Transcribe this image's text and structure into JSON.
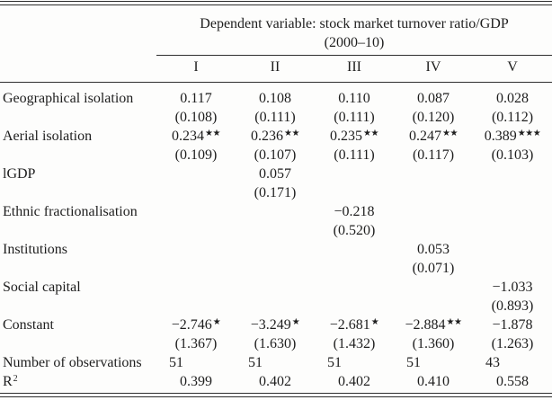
{
  "page": {
    "background": "#fdfdfc",
    "text_color": "#1e1e1e",
    "rule_color": "#2e2e2e"
  },
  "table": {
    "dependent_variable_header": {
      "line1": "Dependent variable: stock market turnover ratio/GDP",
      "line2": "(2000–10)"
    },
    "column_headers": [
      "I",
      "II",
      "III",
      "IV",
      "V"
    ],
    "variable_rows": [
      {
        "label": "Geographical isolation",
        "cells": [
          {
            "coef": "0.117",
            "stars": "",
            "se": "(0.108)"
          },
          {
            "coef": "0.108",
            "stars": "",
            "se": "(0.111)"
          },
          {
            "coef": "0.110",
            "stars": "",
            "se": "(0.111)"
          },
          {
            "coef": "0.087",
            "stars": "",
            "se": "(0.120)"
          },
          {
            "coef": "0.028",
            "stars": "",
            "se": "(0.112)"
          }
        ]
      },
      {
        "label": "Aerial isolation",
        "cells": [
          {
            "coef": "0.234",
            "stars": "★★",
            "se": "(0.109)"
          },
          {
            "coef": "0.236",
            "stars": "★★",
            "se": "(0.107)"
          },
          {
            "coef": "0.235",
            "stars": "★★",
            "se": "(0.111)"
          },
          {
            "coef": "0.247",
            "stars": "★★",
            "se": "(0.117)"
          },
          {
            "coef": "0.389",
            "stars": "★★★",
            "se": "(0.103)"
          }
        ]
      },
      {
        "label": "lGDP",
        "cells": [
          null,
          {
            "coef": "0.057",
            "stars": "",
            "se": "(0.171)"
          },
          null,
          null,
          null
        ]
      },
      {
        "label": "Ethnic fractionalisation",
        "cells": [
          null,
          null,
          {
            "coef": "−0.218",
            "stars": "",
            "se": "(0.520)"
          },
          null,
          null
        ]
      },
      {
        "label": "Institutions",
        "cells": [
          null,
          null,
          null,
          {
            "coef": "0.053",
            "stars": "",
            "se": "(0.071)"
          },
          null
        ]
      },
      {
        "label": "Social capital",
        "cells": [
          null,
          null,
          null,
          null,
          {
            "coef": "−1.033",
            "stars": "",
            "se": "(0.893)"
          }
        ]
      },
      {
        "label": "Constant",
        "cells": [
          {
            "coef": "−2.746",
            "stars": "★",
            "se": "(1.367)"
          },
          {
            "coef": "−3.249",
            "stars": "★",
            "se": "(1.630)"
          },
          {
            "coef": "−2.681",
            "stars": "★",
            "se": "(1.432)"
          },
          {
            "coef": "−2.884",
            "stars": "★★",
            "se": "(1.360)"
          },
          {
            "coef": "−1.878",
            "stars": "",
            "se": "(1.263)"
          }
        ]
      }
    ],
    "stat_rows": [
      {
        "label": "Number of observations",
        "label_sup": "",
        "values": [
          "51",
          "51",
          "51",
          "51",
          "43"
        ],
        "align": "left"
      },
      {
        "label": "R",
        "label_sup": "2",
        "values": [
          "0.399",
          "0.402",
          "0.402",
          "0.410",
          "0.558"
        ],
        "align": "center"
      }
    ]
  }
}
